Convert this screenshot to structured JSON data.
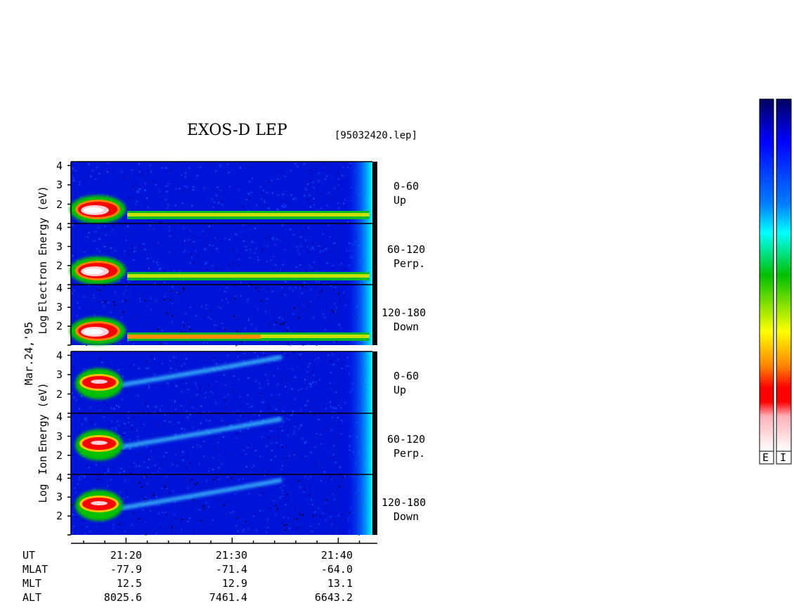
{
  "title": "EXOS-D LEP",
  "file_label": "[95032420.lep]",
  "date_label": "Mar.24,'95",
  "electron": {
    "ylabel_parts": [
      "Log",
      "Electron",
      "Energy (eV)"
    ],
    "panels": [
      {
        "line1": "0-60",
        "line2": "Up"
      },
      {
        "line1": "60-120",
        "line2": "Perp."
      },
      {
        "line1": "120-180",
        "line2": "Down"
      }
    ]
  },
  "ion": {
    "ylabel_parts": [
      "Log",
      "Ion",
      "Energy (eV)"
    ],
    "panels": [
      {
        "line1": "0-60",
        "line2": "Up"
      },
      {
        "line1": "60-120",
        "line2": "Perp."
      },
      {
        "line1": "120-180",
        "line2": "Down"
      }
    ]
  },
  "colorbars": [
    {
      "label": "E"
    },
    {
      "label": "I"
    }
  ],
  "colorbar_colors": [
    "#ffffff",
    "#ffb0b8",
    "#ff0000",
    "#ff8000",
    "#ffff00",
    "#00c000",
    "#00ffff",
    "#0080ff",
    "#0000ff",
    "#000060"
  ],
  "orbit_table": {
    "row_labels": [
      "UT",
      "MLAT",
      "MLT",
      "ALT"
    ],
    "columns": [
      {
        "UT": "21:20",
        "MLAT": "-77.9",
        "MLT": "12.5",
        "ALT": "8025.6"
      },
      {
        "UT": "21:30",
        "MLAT": "-71.4",
        "MLT": "12.9",
        "ALT": "7461.4"
      },
      {
        "UT": "21:40",
        "MLAT": "-64.0",
        "MLT": "13.1",
        "ALT": "6643.2"
      }
    ]
  },
  "chart_data": {
    "type": "heatmap",
    "title": "EXOS-D LEP",
    "xlabel": "UT",
    "x_tick_labels": [
      "21:20",
      "21:30",
      "21:40"
    ],
    "ylabel_electron": "Log Electron Energy (eV)",
    "ylabel_ion": "Log Ion Energy (eV)",
    "y_tick_labels_upper_panel": [
      "2",
      "3",
      "4"
    ],
    "y_tick_labels_lower_panel": [
      "2",
      "3",
      "4"
    ],
    "ylim": [
      1,
      4.2
    ],
    "panels": [
      "Electron 0-60 Up",
      "Electron 60-120 Perp.",
      "Electron 120-180 Down",
      "Ion 0-60 Up",
      "Ion 60-120 Perp.",
      "Ion 120-180 Down"
    ],
    "colorscale": [
      "white",
      "pink",
      "red",
      "orange",
      "yellow",
      "green",
      "cyan",
      "blue",
      "dark blue"
    ]
  }
}
